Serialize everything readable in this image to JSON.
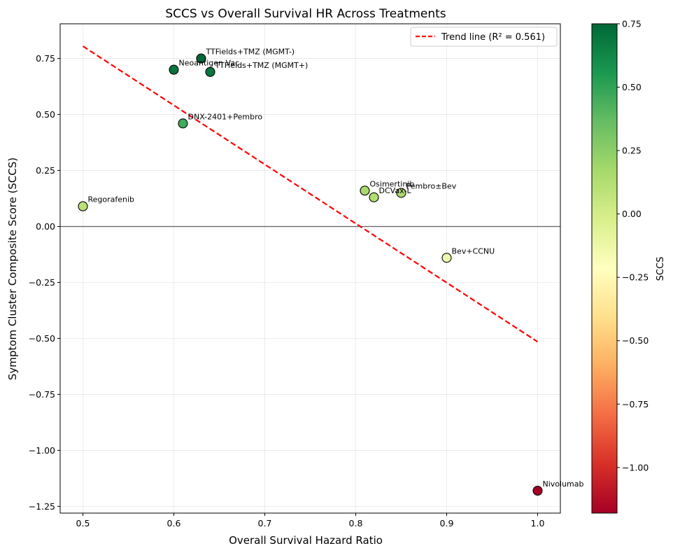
{
  "chart_data": {
    "type": "scatter",
    "title": "SCCS vs Overall Survival HR Across Treatments",
    "xlabel": "Overall Survival Hazard Ratio",
    "ylabel": "Symptom Cluster Composite Score (SCCS)",
    "xlim": [
      0.475,
      1.025
    ],
    "ylim": [
      -1.28,
      0.905
    ],
    "xticks": [
      0.5,
      0.6,
      0.7,
      0.8,
      0.9,
      1.0
    ],
    "xtick_labels": [
      "0.5",
      "0.6",
      "0.7",
      "0.8",
      "0.9",
      "1.0"
    ],
    "yticks": [
      -1.25,
      -1.0,
      -0.75,
      -0.5,
      -0.25,
      0.0,
      0.25,
      0.5,
      0.75
    ],
    "ytick_labels": [
      "−1.25",
      "−1.00",
      "−0.75",
      "−0.50",
      "−0.25",
      "0.00",
      "0.25",
      "0.50",
      "0.75"
    ],
    "grid": true,
    "zero_line": 0.0,
    "points": [
      {
        "label": "TTFields+TMZ (MGMT-)",
        "x": 0.63,
        "y": 0.75
      },
      {
        "label": "Neoantigen Vac",
        "x": 0.6,
        "y": 0.7
      },
      {
        "label": "TTFields+TMZ (MGMT+)",
        "x": 0.64,
        "y": 0.69
      },
      {
        "label": "DNX-2401+Pembro",
        "x": 0.61,
        "y": 0.46
      },
      {
        "label": "Regorafenib",
        "x": 0.5,
        "y": 0.09
      },
      {
        "label": "Osimertinib",
        "x": 0.81,
        "y": 0.16
      },
      {
        "label": "DCVax-L",
        "x": 0.82,
        "y": 0.13
      },
      {
        "label": "Pembro±Bev",
        "x": 0.85,
        "y": 0.15
      },
      {
        "label": "Bev+CCNU",
        "x": 0.9,
        "y": -0.14
      },
      {
        "label": "Nivolumab",
        "x": 1.0,
        "y": -1.18
      }
    ],
    "trend": {
      "label": "Trend line (R² = 0.561)",
      "x": [
        0.5,
        1.0
      ],
      "y": [
        0.805,
        -0.515
      ],
      "color": "#ff0000"
    },
    "legend_position": "top-right",
    "colorbar": {
      "label": "SCCS",
      "colormap": "RdYlGn",
      "range": [
        -1.18,
        0.75
      ],
      "ticks": [
        0.75,
        0.5,
        0.25,
        0.0,
        -0.25,
        -0.5,
        -0.75,
        -1.0
      ],
      "tick_labels": [
        "0.75",
        "0.50",
        "0.25",
        "0.00",
        "−0.25",
        "−0.50",
        "−0.75",
        "−1.00"
      ],
      "colors": [
        "#a50026",
        "#d73027",
        "#f46d43",
        "#fdae61",
        "#fee08b",
        "#ffffbf",
        "#d9ef8b",
        "#a6d96a",
        "#66bd63",
        "#1a9850",
        "#006837"
      ]
    }
  }
}
